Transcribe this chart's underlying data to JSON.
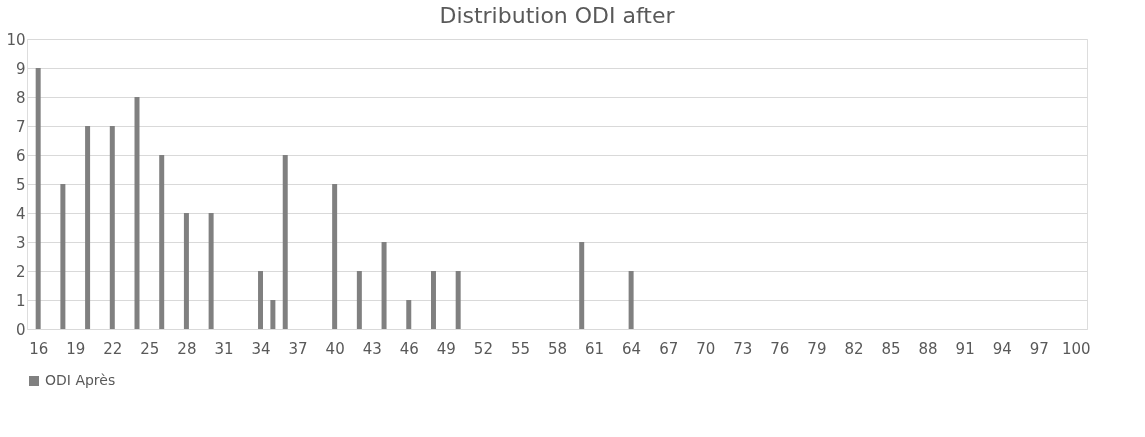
{
  "chart_data": {
    "type": "bar",
    "title": "Distribution ODI after",
    "x": [
      16,
      18,
      20,
      22,
      24,
      26,
      28,
      30,
      34,
      35,
      36,
      40,
      42,
      44,
      46,
      48,
      50,
      60,
      64
    ],
    "series": [
      {
        "name": "ODI Après",
        "color": "#808080",
        "values": [
          9,
          5,
          7,
          7,
          8,
          6,
          4,
          4,
          2,
          1,
          6,
          5,
          2,
          3,
          1,
          2,
          2,
          3,
          2
        ]
      }
    ],
    "xlim": [
      15.5,
      100.5
    ],
    "xticks": [
      16,
      19,
      22,
      25,
      28,
      31,
      34,
      37,
      40,
      43,
      46,
      49,
      52,
      55,
      58,
      61,
      64,
      67,
      70,
      73,
      76,
      79,
      82,
      85,
      88,
      91,
      94,
      97,
      100
    ],
    "ylim": [
      0,
      10
    ],
    "yticks": [
      0,
      1,
      2,
      3,
      4,
      5,
      6,
      7,
      8,
      9,
      10
    ],
    "grid": "y",
    "legend": "bottom"
  }
}
